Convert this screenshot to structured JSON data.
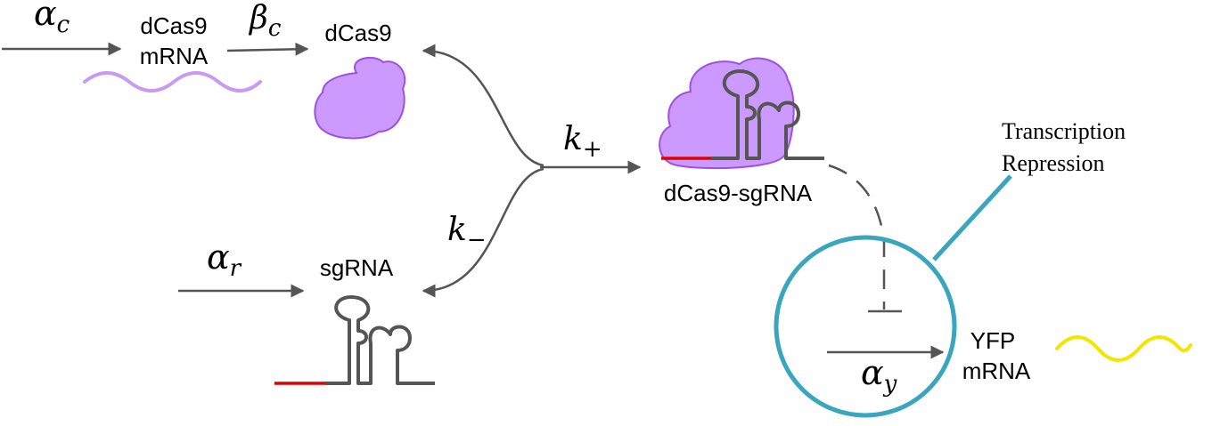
{
  "labels": {
    "dcas9_mrna_line1": "dCas9",
    "dcas9_mrna_line2": "mRNA",
    "dcas9": "dCas9",
    "complex": "dCas9-sgRNA",
    "sgrna": "sgRNA",
    "yfp_line1": "YFP",
    "yfp_line2": "mRNA",
    "callout_line1": "Transcription",
    "callout_line2": "Repression"
  },
  "rates": {
    "alpha_c": {
      "sym": "α",
      "sub": "c"
    },
    "beta_c": {
      "sym": "β",
      "sub": "c"
    },
    "k_plus": {
      "sym": "k",
      "sub": "+"
    },
    "k_minus": {
      "sym": "k",
      "sub": "−"
    },
    "alpha_r": {
      "sym": "α",
      "sub": "r"
    },
    "alpha_y": {
      "sym": "α",
      "sub": "y"
    }
  },
  "colors": {
    "arrow": "#555555",
    "protein_fill": "#cc99ff",
    "protein_stroke": "#a050e0",
    "dcas9_mrna_wave": "#c89af0",
    "yfp_wave": "#f2e600",
    "seed": "#e00000",
    "sgrna_stroke": "#555555",
    "circle": "#3aa6bd"
  },
  "icons": [
    "protein-blob-icon",
    "sgrna-hairpin-icon",
    "mrna-wave-icon",
    "repression-bar-icon"
  ]
}
